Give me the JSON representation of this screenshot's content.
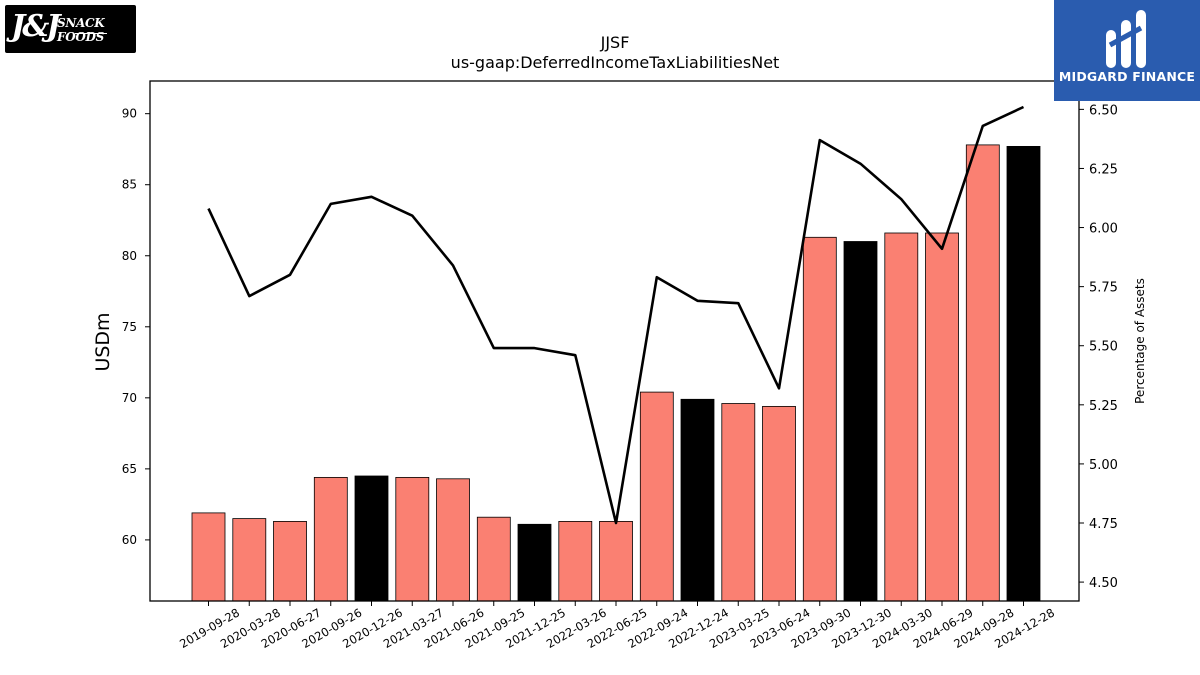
{
  "logos": {
    "left_text": "SNACK FOODS",
    "left_mark": "J&J",
    "right_text": "MIDGARD FINANCE"
  },
  "chart_data": {
    "type": "bar",
    "title": "JJSF",
    "subtitle": "us-gaap:DeferredIncomeTaxLiabilitiesNet",
    "ylabel": "USDm",
    "y2label": "Percentage of Assets",
    "ylim": [
      55.7,
      92.3
    ],
    "y2lim": [
      4.42,
      6.62
    ],
    "yticks": [
      60,
      65,
      70,
      75,
      80,
      85,
      90
    ],
    "y2ticks": [
      "4.50",
      "4.75",
      "5.00",
      "5.25",
      "5.50",
      "5.75",
      "6.00",
      "6.25",
      "6.50"
    ],
    "categories": [
      "2019-09-28",
      "2020-03-28",
      "2020-06-27",
      "2020-09-26",
      "2020-12-26",
      "2021-03-27",
      "2021-06-26",
      "2021-09-25",
      "2021-12-25",
      "2022-03-26",
      "2022-06-25",
      "2022-09-24",
      "2022-12-24",
      "2023-03-25",
      "2023-06-24",
      "2023-09-30",
      "2023-12-30",
      "2024-03-30",
      "2024-06-29",
      "2024-09-28",
      "2024-12-28"
    ],
    "series": [
      {
        "type": "bar",
        "values": [
          61.9,
          61.5,
          61.3,
          64.4,
          64.5,
          64.4,
          64.3,
          61.6,
          61.1,
          61.3,
          61.3,
          70.4,
          69.9,
          69.6,
          69.4,
          81.3,
          81.0,
          81.6,
          81.6,
          87.8,
          87.7
        ],
        "colors": [
          "#fa8072",
          "#fa8072",
          "#fa8072",
          "#fa8072",
          "#000000",
          "#fa8072",
          "#fa8072",
          "#fa8072",
          "#000000",
          "#fa8072",
          "#fa8072",
          "#fa8072",
          "#000000",
          "#fa8072",
          "#fa8072",
          "#fa8072",
          "#000000",
          "#fa8072",
          "#fa8072",
          "#fa8072",
          "#000000"
        ]
      },
      {
        "type": "line",
        "axis": "right",
        "color": "#000000",
        "values": [
          6.08,
          5.71,
          5.8,
          6.1,
          6.13,
          6.05,
          5.84,
          5.49,
          5.49,
          5.46,
          4.75,
          5.79,
          5.69,
          5.68,
          5.32,
          6.37,
          6.27,
          6.12,
          5.91,
          6.43,
          6.51
        ]
      }
    ]
  }
}
